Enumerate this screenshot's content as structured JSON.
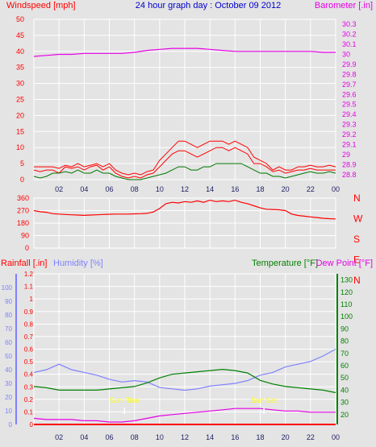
{
  "colors": {
    "background": "#e4e4e4",
    "grid": "#ffffff",
    "wind_speed": "#ff0000",
    "wind_gust": "#ff0000",
    "wind_average": "#007700",
    "wind_direction": "#ff0000",
    "barometer": "#e600e6",
    "rainfall": "#ff0000",
    "humidity": "#8080ff",
    "temperature": "#008000",
    "dew_point": "#e600e6",
    "sun_marker": "#ffff00",
    "title": "#0000cc"
  },
  "chart_data": [
    {
      "type": "line",
      "title": "24 hour graph day : October 09 2012",
      "left_axis": {
        "label": "Windspeed [mph]",
        "ticks": [
          "0",
          "5",
          "10",
          "15",
          "20",
          "25",
          "30",
          "35",
          "40",
          "45",
          "50"
        ],
        "ylim": [
          0,
          50
        ]
      },
      "right_axis": {
        "label": "Barometer [.in]",
        "ticks": [
          "28.8",
          "28.9",
          "29",
          "29.1",
          "29.2",
          "29.3",
          "29.4",
          "29.5",
          "29.6",
          "29.7",
          "29.8",
          "29.9",
          "30",
          "30.1",
          "30.2",
          "30.3"
        ],
        "ylim": [
          28.75,
          30.35
        ]
      },
      "xlim": [
        0,
        24
      ],
      "x_ticks": [
        "02",
        "04",
        "06",
        "08",
        "10",
        "12",
        "14",
        "16",
        "18",
        "20",
        "22",
        "00"
      ],
      "grid": true,
      "series": [
        {
          "key": "wind_speed",
          "axis": "left",
          "x": [
            0,
            0.5,
            1,
            1.5,
            2,
            2.5,
            3,
            3.5,
            4,
            4.5,
            5,
            5.5,
            6,
            6.5,
            7,
            7.5,
            8,
            8.5,
            9,
            9.5,
            10,
            10.5,
            11,
            11.5,
            12,
            12.5,
            13,
            13.5,
            14,
            14.5,
            15,
            15.5,
            16,
            16.5,
            17,
            17.5,
            18,
            18.5,
            19,
            19.5,
            20,
            20.5,
            21,
            21.5,
            22,
            22.5,
            23,
            23.5,
            24
          ],
          "y": [
            3,
            2.5,
            3,
            3,
            2,
            4,
            3.5,
            4,
            3,
            4,
            4.5,
            3,
            4,
            2,
            1,
            0.5,
            1,
            0.5,
            1.5,
            2,
            4,
            6,
            8,
            9,
            9,
            8,
            7,
            8,
            9,
            10,
            10,
            9,
            10,
            9,
            8,
            5,
            5,
            4,
            2.5,
            3,
            2,
            2.5,
            3,
            3,
            3.5,
            3,
            3,
            3,
            3
          ]
        },
        {
          "key": "wind_gust",
          "axis": "left",
          "x": [
            0,
            0.5,
            1,
            1.5,
            2,
            2.5,
            3,
            3.5,
            4,
            4.5,
            5,
            5.5,
            6,
            6.5,
            7,
            7.5,
            8,
            8.5,
            9,
            9.5,
            10,
            10.5,
            11,
            11.5,
            12,
            12.5,
            13,
            13.5,
            14,
            14.5,
            15,
            15.5,
            16,
            16.5,
            17,
            17.5,
            18,
            18.5,
            19,
            19.5,
            20,
            20.5,
            21,
            21.5,
            22,
            22.5,
            23,
            23.5,
            24
          ],
          "y": [
            4,
            4,
            4,
            4,
            3.5,
            4.5,
            4,
            5,
            4,
            4.5,
            5,
            4,
            5,
            3,
            2,
            1.5,
            2,
            1.5,
            2.5,
            3,
            6,
            8,
            10,
            12,
            12,
            11,
            10,
            11,
            12,
            12,
            12,
            11,
            12,
            11,
            10,
            7,
            6,
            5,
            3,
            4,
            3,
            3,
            4,
            4,
            4.5,
            4,
            4,
            4.5,
            4
          ]
        },
        {
          "key": "wind_average",
          "axis": "left",
          "x": [
            0,
            0.5,
            1,
            1.5,
            2,
            2.5,
            3,
            3.5,
            4,
            4.5,
            5,
            5.5,
            6,
            6.5,
            7,
            7.5,
            8,
            8.5,
            9,
            9.5,
            10,
            10.5,
            11,
            11.5,
            12,
            12.5,
            13,
            13.5,
            14,
            14.5,
            15,
            15.5,
            16,
            16.5,
            17,
            17.5,
            18,
            18.5,
            19,
            19.5,
            20,
            20.5,
            21,
            21.5,
            22,
            22.5,
            23,
            23.5,
            24
          ],
          "y": [
            1,
            0.5,
            1,
            2,
            2,
            2.5,
            2,
            3,
            2,
            2,
            3,
            2,
            2,
            1,
            0.5,
            0,
            0,
            0,
            0.5,
            1,
            1.5,
            2,
            3,
            4,
            4,
            3,
            3,
            4,
            4,
            5,
            5,
            5,
            5,
            5,
            4,
            3,
            2,
            2,
            1,
            1,
            0.5,
            1,
            1.5,
            2,
            2.5,
            2,
            2,
            2.5,
            2
          ]
        },
        {
          "key": "barometer",
          "axis": "right",
          "x": [
            0,
            1,
            2,
            3,
            4,
            5,
            6,
            7,
            8,
            9,
            10,
            11,
            12,
            13,
            14,
            15,
            16,
            17,
            18,
            19,
            20,
            21,
            22,
            23,
            24
          ],
          "y": [
            29.98,
            29.99,
            30.0,
            30.0,
            30.01,
            30.01,
            30.01,
            30.01,
            30.02,
            30.04,
            30.05,
            30.06,
            30.06,
            30.06,
            30.05,
            30.04,
            30.03,
            30.03,
            30.03,
            30.03,
            30.03,
            30.03,
            30.03,
            30.02,
            30.02
          ]
        }
      ]
    },
    {
      "type": "line",
      "title": "",
      "left_axis": {
        "label": "",
        "ticks": [
          "0",
          "90",
          "180",
          "270",
          "360"
        ],
        "ylim": [
          0,
          360
        ]
      },
      "right_labels": [
        "N",
        "W",
        "S",
        "E",
        "N"
      ],
      "xlim": [
        0,
        24
      ],
      "grid": true,
      "series": [
        {
          "key": "wind_direction",
          "axis": "left",
          "x": [
            0,
            0.5,
            1,
            1.5,
            2,
            2.5,
            3,
            3.5,
            4,
            4.5,
            5,
            5.5,
            6,
            6.5,
            7,
            7.5,
            8,
            8.5,
            9,
            9.5,
            10,
            10.5,
            11,
            11.5,
            12,
            12.5,
            13,
            13.5,
            14,
            14.5,
            15,
            15.5,
            16,
            16.5,
            17,
            17.5,
            18,
            18.5,
            19,
            19.5,
            20,
            20.5,
            21,
            21.5,
            22,
            22.5,
            23,
            23.5,
            24
          ],
          "y": [
            270,
            262,
            258,
            248,
            245,
            242,
            240,
            238,
            236,
            238,
            240,
            242,
            244,
            245,
            245,
            245,
            247,
            248,
            250,
            260,
            285,
            320,
            330,
            325,
            335,
            330,
            340,
            330,
            345,
            335,
            340,
            335,
            345,
            330,
            320,
            305,
            290,
            280,
            278,
            276,
            270,
            245,
            235,
            230,
            225,
            220,
            215,
            212,
            210
          ]
        }
      ]
    },
    {
      "type": "line",
      "title": "",
      "left_axes": [
        {
          "label": "Rainfall [.in]",
          "ticks": [
            "0",
            "0.1",
            "0.2",
            "0.3",
            "0.4",
            "0.5",
            "0.6",
            "0.7",
            "0.8",
            "0.9",
            "1",
            "1.1",
            "1.2"
          ],
          "ylim": [
            0,
            1.2
          ]
        },
        {
          "label": "Humidity [%]",
          "ticks": [
            "0",
            "10",
            "20",
            "30",
            "40",
            "50",
            "60",
            "70",
            "80",
            "90",
            "100"
          ],
          "ylim": [
            0,
            110
          ]
        }
      ],
      "right_axis": {
        "label": "Temperature [°F]",
        "label2": "Dew Point [°F]",
        "ticks": [
          "20",
          "30",
          "40",
          "50",
          "60",
          "70",
          "80",
          "90",
          "100",
          "110",
          "120",
          "130"
        ],
        "ylim": [
          12,
          135
        ]
      },
      "xlim": [
        0,
        24
      ],
      "x_ticks": [
        "02",
        "04",
        "06",
        "08",
        "10",
        "12",
        "14",
        "16",
        "18",
        "20",
        "22",
        "00"
      ],
      "grid": true,
      "annotations": [
        {
          "text": "Sun Rise",
          "x": 7.2
        },
        {
          "text": "Sun Set",
          "x": 18.3
        }
      ],
      "series": [
        {
          "key": "rainfall",
          "axis": "left0",
          "x": [
            0,
            24
          ],
          "y": [
            0,
            0
          ]
        },
        {
          "key": "humidity",
          "axis": "left1",
          "x": [
            0,
            1,
            2,
            3,
            4,
            5,
            6,
            7,
            8,
            9,
            10,
            11,
            12,
            13,
            14,
            15,
            16,
            17,
            18,
            19,
            20,
            21,
            22,
            23,
            24
          ],
          "y": [
            38,
            40,
            44,
            40,
            38,
            36,
            33,
            31,
            32,
            31,
            27,
            26,
            25,
            26,
            28,
            29,
            30,
            32,
            36,
            38,
            42,
            44,
            46,
            50,
            55
          ]
        },
        {
          "key": "temperature",
          "axis": "right",
          "x": [
            0,
            1,
            2,
            3,
            4,
            5,
            6,
            7,
            8,
            9,
            10,
            11,
            12,
            13,
            14,
            15,
            16,
            17,
            18,
            19,
            20,
            21,
            22,
            23,
            24
          ],
          "y": [
            43,
            42,
            40,
            40,
            40,
            40,
            41,
            42,
            43,
            46,
            50,
            53,
            54,
            55,
            56,
            57,
            56,
            54,
            48,
            45,
            43,
            42,
            41,
            40,
            38
          ]
        },
        {
          "key": "dew_point",
          "axis": "right",
          "x": [
            0,
            1,
            2,
            3,
            4,
            5,
            6,
            7,
            8,
            9,
            10,
            11,
            12,
            13,
            14,
            15,
            16,
            17,
            18,
            19,
            20,
            21,
            22,
            23,
            24
          ],
          "y": [
            17,
            16,
            16,
            16,
            15,
            15,
            14,
            14,
            15,
            17,
            19,
            20,
            21,
            22,
            23,
            24,
            25,
            25,
            25,
            24,
            23,
            23,
            22,
            22,
            22
          ]
        }
      ]
    }
  ]
}
